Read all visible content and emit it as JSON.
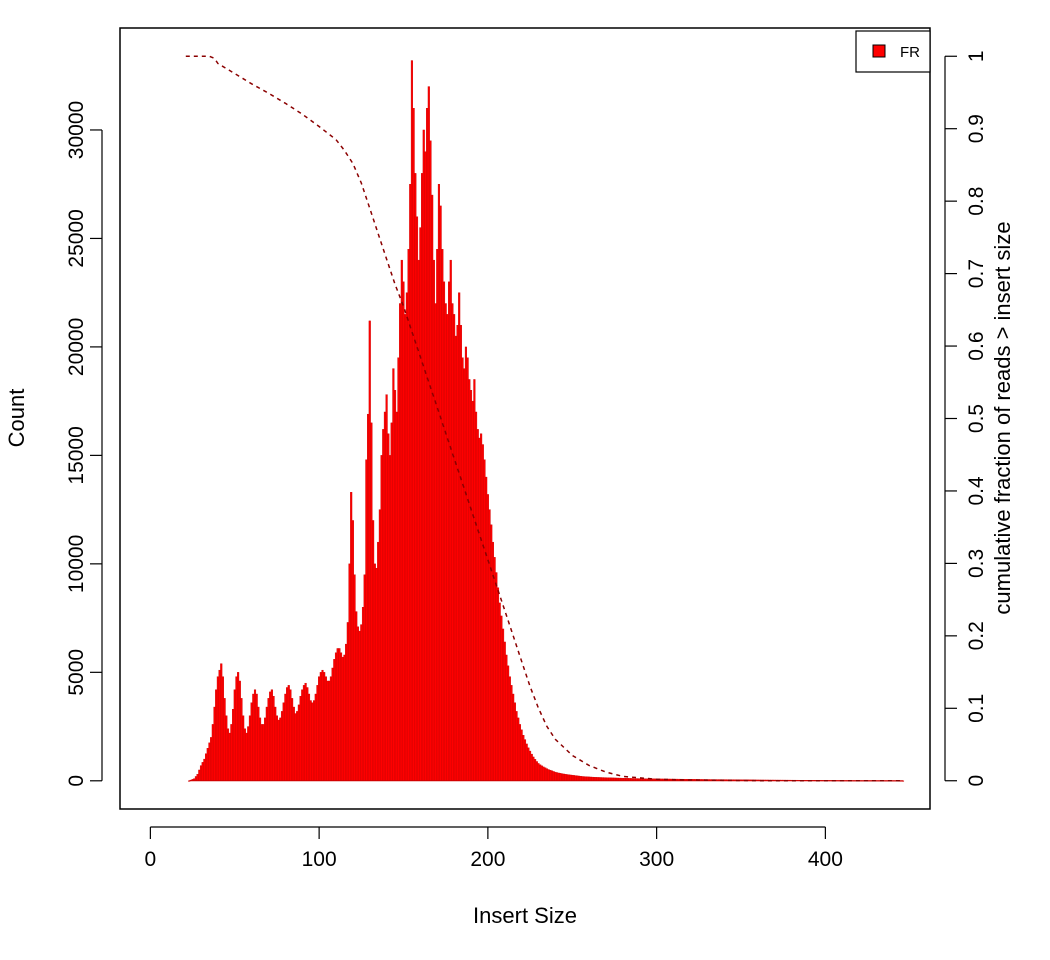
{
  "chart_data": {
    "type": "bar",
    "title": "",
    "xlabel": "Insert Size",
    "ylabel": "Count",
    "y2label": "cumulative fraction of reads > insert size",
    "xlim": [
      -18,
      462
    ],
    "ylim": [
      -1300,
      34700
    ],
    "y2lim": [
      -0.039,
      1.039
    ],
    "x_ticks": [
      "0",
      "100",
      "200",
      "300",
      "400"
    ],
    "x_tick_values": [
      0,
      100,
      200,
      300,
      400
    ],
    "y_ticks": [
      "0",
      "5000",
      "10000",
      "15000",
      "20000",
      "25000",
      "30000"
    ],
    "y_tick_values": [
      0,
      5000,
      10000,
      15000,
      20000,
      25000,
      30000
    ],
    "y2_ticks": [
      "0",
      "0.1",
      "0.2",
      "0.3",
      "0.4",
      "0.5",
      "0.6",
      "0.7",
      "0.8",
      "0.9",
      "1"
    ],
    "y2_tick_values": [
      0,
      0.1,
      0.2,
      0.3,
      0.4,
      0.5,
      0.6,
      0.7,
      0.8,
      0.9,
      1
    ],
    "grid": false,
    "legend": {
      "position": "top-right",
      "entries": [
        "FR"
      ]
    },
    "colors": {
      "bars": "#ff0000",
      "bar_edge": "#cc0000",
      "cumulative": "#8b0000"
    },
    "series": [
      {
        "type": "bar",
        "points": [
          [
            23,
            0
          ],
          [
            26,
            100
          ],
          [
            28,
            300
          ],
          [
            30,
            700
          ],
          [
            32,
            1000
          ],
          [
            34,
            1500
          ],
          [
            36,
            2000
          ],
          [
            37,
            2600
          ],
          [
            38,
            3400
          ],
          [
            39,
            4200
          ],
          [
            40,
            4800
          ],
          [
            41,
            5100
          ],
          [
            42,
            5400
          ],
          [
            43,
            4800
          ],
          [
            44,
            3800
          ],
          [
            45,
            3000
          ],
          [
            46,
            2400
          ],
          [
            47,
            2200
          ],
          [
            48,
            2600
          ],
          [
            49,
            3300
          ],
          [
            50,
            4200
          ],
          [
            51,
            4800
          ],
          [
            52,
            5000
          ],
          [
            53,
            4600
          ],
          [
            54,
            3800
          ],
          [
            55,
            3000
          ],
          [
            56,
            2400
          ],
          [
            57,
            2200
          ],
          [
            58,
            2500
          ],
          [
            59,
            3000
          ],
          [
            60,
            3600
          ],
          [
            61,
            4000
          ],
          [
            62,
            4200
          ],
          [
            63,
            4000
          ],
          [
            64,
            3400
          ],
          [
            65,
            2900
          ],
          [
            66,
            2600
          ],
          [
            67,
            2600
          ],
          [
            68,
            2900
          ],
          [
            69,
            3400
          ],
          [
            70,
            3800
          ],
          [
            71,
            4100
          ],
          [
            72,
            4200
          ],
          [
            73,
            3900
          ],
          [
            74,
            3400
          ],
          [
            75,
            3000
          ],
          [
            76,
            2800
          ],
          [
            77,
            2900
          ],
          [
            78,
            3200
          ],
          [
            79,
            3600
          ],
          [
            80,
            4000
          ],
          [
            81,
            4300
          ],
          [
            82,
            4400
          ],
          [
            83,
            4200
          ],
          [
            84,
            3800
          ],
          [
            85,
            3400
          ],
          [
            86,
            3100
          ],
          [
            87,
            3200
          ],
          [
            88,
            3500
          ],
          [
            89,
            3900
          ],
          [
            90,
            4200
          ],
          [
            91,
            4400
          ],
          [
            92,
            4500
          ],
          [
            93,
            4300
          ],
          [
            94,
            4000
          ],
          [
            95,
            3700
          ],
          [
            96,
            3600
          ],
          [
            97,
            3700
          ],
          [
            98,
            4000
          ],
          [
            99,
            4400
          ],
          [
            100,
            4800
          ],
          [
            101,
            5000
          ],
          [
            102,
            5100
          ],
          [
            103,
            5000
          ],
          [
            104,
            4800
          ],
          [
            105,
            4600
          ],
          [
            106,
            4600
          ],
          [
            107,
            4800
          ],
          [
            108,
            5200
          ],
          [
            109,
            5600
          ],
          [
            110,
            5900
          ],
          [
            111,
            6100
          ],
          [
            112,
            6100
          ],
          [
            113,
            5900
          ],
          [
            114,
            5700
          ],
          [
            115,
            5800
          ],
          [
            116,
            6300
          ],
          [
            117,
            7300
          ],
          [
            118,
            10000
          ],
          [
            119,
            13300
          ],
          [
            120,
            12000
          ],
          [
            121,
            9500
          ],
          [
            122,
            7800
          ],
          [
            123,
            7100
          ],
          [
            124,
            6900
          ],
          [
            125,
            7200
          ],
          [
            126,
            8000
          ],
          [
            127,
            9500
          ],
          [
            128,
            14800
          ],
          [
            129,
            16900
          ],
          [
            130,
            21200
          ],
          [
            131,
            16500
          ],
          [
            132,
            12000
          ],
          [
            133,
            10000
          ],
          [
            134,
            9800
          ],
          [
            135,
            11000
          ],
          [
            136,
            12500
          ],
          [
            137,
            15000
          ],
          [
            138,
            16200
          ],
          [
            139,
            17000
          ],
          [
            140,
            17800
          ],
          [
            141,
            16000
          ],
          [
            142,
            15000
          ],
          [
            143,
            16500
          ],
          [
            144,
            19000
          ],
          [
            145,
            18000
          ],
          [
            146,
            17000
          ],
          [
            147,
            19500
          ],
          [
            148,
            22000
          ],
          [
            149,
            24000
          ],
          [
            150,
            23000
          ],
          [
            151,
            21500
          ],
          [
            152,
            22500
          ],
          [
            153,
            24500
          ],
          [
            154,
            27500
          ],
          [
            155,
            33200
          ],
          [
            156,
            31000
          ],
          [
            157,
            28000
          ],
          [
            158,
            26000
          ],
          [
            159,
            24000
          ],
          [
            160,
            25500
          ],
          [
            161,
            28000
          ],
          [
            162,
            30000
          ],
          [
            163,
            29000
          ],
          [
            164,
            31000
          ],
          [
            165,
            32000
          ],
          [
            166,
            29500
          ],
          [
            167,
            27000
          ],
          [
            168,
            24000
          ],
          [
            169,
            22000
          ],
          [
            170,
            24500
          ],
          [
            171,
            27500
          ],
          [
            172,
            26500
          ],
          [
            173,
            24500
          ],
          [
            174,
            23000
          ],
          [
            175,
            22000
          ],
          [
            176,
            21500
          ],
          [
            177,
            23000
          ],
          [
            178,
            24000
          ],
          [
            179,
            22000
          ],
          [
            180,
            21500
          ],
          [
            181,
            20500
          ],
          [
            182,
            21000
          ],
          [
            183,
            22500
          ],
          [
            184,
            21000
          ],
          [
            185,
            19500
          ],
          [
            186,
            19000
          ],
          [
            187,
            20000
          ],
          [
            188,
            19500
          ],
          [
            189,
            18500
          ],
          [
            190,
            18000
          ],
          [
            191,
            17500
          ],
          [
            192,
            18500
          ],
          [
            193,
            17000
          ],
          [
            194,
            16200
          ],
          [
            195,
            15800
          ],
          [
            196,
            16000
          ],
          [
            197,
            15500
          ],
          [
            198,
            14800
          ],
          [
            199,
            14000
          ],
          [
            200,
            13200
          ],
          [
            201,
            12500
          ],
          [
            202,
            11800
          ],
          [
            203,
            11000
          ],
          [
            204,
            10300
          ],
          [
            205,
            9600
          ],
          [
            206,
            8900
          ],
          [
            207,
            8200
          ],
          [
            208,
            7600
          ],
          [
            209,
            7000
          ],
          [
            210,
            6400
          ],
          [
            211,
            5800
          ],
          [
            212,
            5300
          ],
          [
            213,
            4800
          ],
          [
            214,
            4400
          ],
          [
            215,
            4000
          ],
          [
            216,
            3600
          ],
          [
            217,
            3200
          ],
          [
            218,
            2900
          ],
          [
            219,
            2600
          ],
          [
            220,
            2350
          ],
          [
            221,
            2100
          ],
          [
            222,
            1900
          ],
          [
            223,
            1700
          ],
          [
            224,
            1520
          ],
          [
            225,
            1370
          ],
          [
            226,
            1230
          ],
          [
            227,
            1100
          ],
          [
            228,
            990
          ],
          [
            229,
            890
          ],
          [
            230,
            800
          ],
          [
            231,
            740
          ],
          [
            232,
            690
          ],
          [
            233,
            640
          ],
          [
            234,
            600
          ],
          [
            235,
            560
          ],
          [
            236,
            520
          ],
          [
            237,
            490
          ],
          [
            238,
            460
          ],
          [
            239,
            430
          ],
          [
            240,
            400
          ],
          [
            242,
            360
          ],
          [
            244,
            330
          ],
          [
            246,
            300
          ],
          [
            248,
            280
          ],
          [
            250,
            260
          ],
          [
            252,
            240
          ],
          [
            254,
            220
          ],
          [
            256,
            200
          ],
          [
            258,
            190
          ],
          [
            260,
            180
          ],
          [
            264,
            160
          ],
          [
            268,
            150
          ],
          [
            272,
            140
          ],
          [
            276,
            130
          ],
          [
            280,
            120
          ],
          [
            285,
            110
          ],
          [
            290,
            100
          ],
          [
            295,
            95
          ],
          [
            300,
            90
          ],
          [
            310,
            80
          ],
          [
            320,
            70
          ],
          [
            330,
            60
          ],
          [
            340,
            55
          ],
          [
            350,
            50
          ],
          [
            360,
            40
          ],
          [
            370,
            35
          ],
          [
            380,
            30
          ],
          [
            390,
            25
          ],
          [
            400,
            20
          ],
          [
            410,
            15
          ],
          [
            420,
            12
          ],
          [
            430,
            10
          ],
          [
            440,
            8
          ],
          [
            446,
            0
          ]
        ]
      },
      {
        "type": "line",
        "name": "cumulative",
        "points": [
          [
            21,
            1.0
          ],
          [
            35,
            1.0
          ],
          [
            38,
            0.997
          ],
          [
            40,
            0.99
          ],
          [
            50,
            0.976
          ],
          [
            60,
            0.962
          ],
          [
            70,
            0.949
          ],
          [
            80,
            0.935
          ],
          [
            90,
            0.92
          ],
          [
            100,
            0.903
          ],
          [
            110,
            0.885
          ],
          [
            115,
            0.87
          ],
          [
            120,
            0.852
          ],
          [
            125,
            0.825
          ],
          [
            130,
            0.79
          ],
          [
            135,
            0.755
          ],
          [
            140,
            0.72
          ],
          [
            145,
            0.685
          ],
          [
            150,
            0.655
          ],
          [
            155,
            0.62
          ],
          [
            160,
            0.585
          ],
          [
            165,
            0.55
          ],
          [
            170,
            0.515
          ],
          [
            175,
            0.48
          ],
          [
            180,
            0.445
          ],
          [
            185,
            0.41
          ],
          [
            190,
            0.375
          ],
          [
            195,
            0.34
          ],
          [
            200,
            0.305
          ],
          [
            205,
            0.27
          ],
          [
            210,
            0.235
          ],
          [
            215,
            0.2
          ],
          [
            220,
            0.165
          ],
          [
            225,
            0.13
          ],
          [
            230,
            0.1
          ],
          [
            235,
            0.075
          ],
          [
            240,
            0.057
          ],
          [
            250,
            0.035
          ],
          [
            260,
            0.021
          ],
          [
            270,
            0.012
          ],
          [
            280,
            0.006
          ],
          [
            300,
            0.002
          ],
          [
            320,
            0.001
          ],
          [
            360,
            0.0
          ],
          [
            446,
            0.0
          ]
        ]
      }
    ]
  }
}
